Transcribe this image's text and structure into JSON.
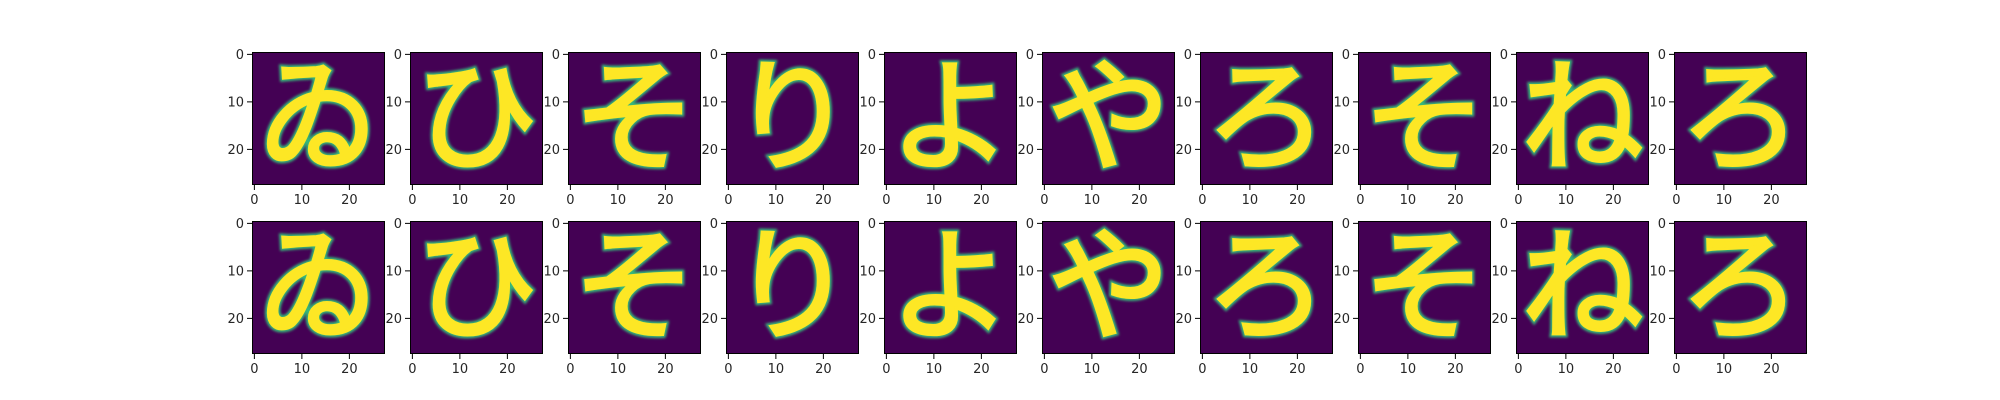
{
  "chart_data": {
    "type": "heatmap",
    "layout": {
      "rows": 2,
      "cols": 10
    },
    "colormap": "viridis",
    "colors": {
      "background": "#440154",
      "stroke": "#fde725",
      "mid": "#35b779",
      "axis": "#000000"
    },
    "axes": {
      "image_size": [
        28,
        28
      ],
      "xlim": [
        -0.5,
        27.5
      ],
      "ylim": [
        27.5,
        -0.5
      ],
      "xticks": [
        0,
        10,
        20
      ],
      "yticks": [
        0,
        10,
        20
      ],
      "xticklabels": [
        "0",
        "10",
        "20"
      ],
      "yticklabels": [
        "0",
        "10",
        "20"
      ]
    },
    "panels": [
      {
        "glyph": "ゐ"
      },
      {
        "glyph": "ひ"
      },
      {
        "glyph": "そ"
      },
      {
        "glyph": "り"
      },
      {
        "glyph": "よ"
      },
      {
        "glyph": "や"
      },
      {
        "glyph": "ろ"
      },
      {
        "glyph": "そ"
      },
      {
        "glyph": "ね"
      },
      {
        "glyph": "ろ"
      },
      {
        "glyph": "ゐ"
      },
      {
        "glyph": "ひ"
      },
      {
        "glyph": "そ"
      },
      {
        "glyph": "り"
      },
      {
        "glyph": "よ"
      },
      {
        "glyph": "や"
      },
      {
        "glyph": "ろ"
      },
      {
        "glyph": "そ"
      },
      {
        "glyph": "ね"
      },
      {
        "glyph": "ろ"
      }
    ]
  }
}
